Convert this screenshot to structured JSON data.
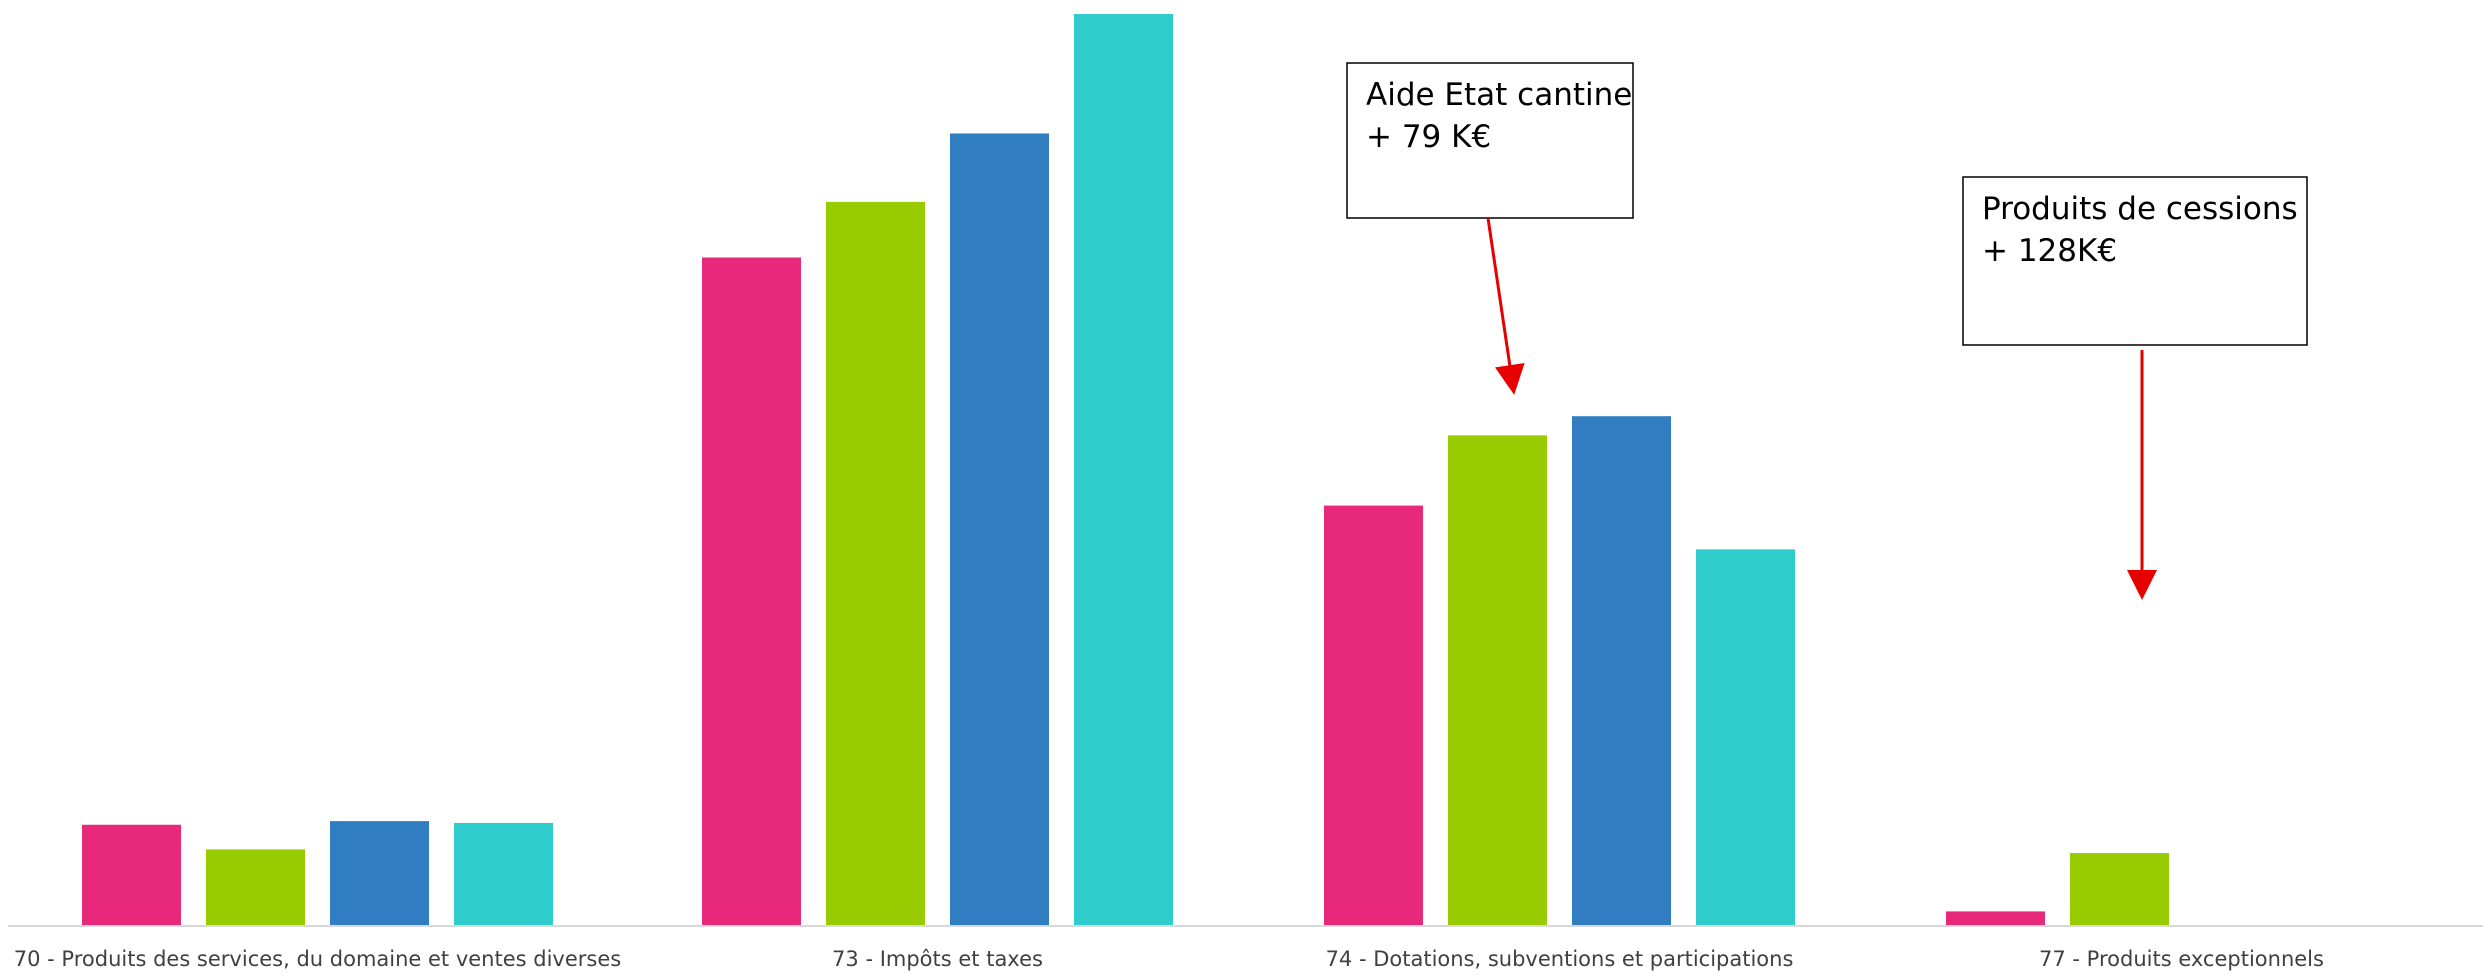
{
  "chart_data": {
    "type": "bar",
    "title": "",
    "xlabel": "",
    "ylabel": "",
    "ylim": [
      0,
      100
    ],
    "categories": [
      "70 - Produits des services, du domaine et ventes diverses",
      "73 - Impôts et taxes",
      "74 - Dotations, subventions et participations",
      "77 - Produits exceptionnels"
    ],
    "series": [
      {
        "color": "#E8287A",
        "values": [
          11.1,
          73.3,
          46.1,
          1.6
        ]
      },
      {
        "color": "#99CC00",
        "values": [
          8.4,
          79.4,
          53.8,
          8.0
        ]
      },
      {
        "color": "#317DC2",
        "values": [
          11.5,
          86.9,
          55.9,
          0
        ]
      },
      {
        "color": "#2ECCCA",
        "values": [
          11.3,
          100.0,
          41.3,
          0
        ]
      }
    ],
    "annotations": [
      {
        "lines": [
          "Aide Etat cantine",
          "+ 79 K€"
        ],
        "target": {
          "category": 2,
          "value": 59.5
        }
      },
      {
        "lines": [
          "Produits de cessions",
          "+ 128K€"
        ],
        "target": {
          "category": 3,
          "value": 37.3
        }
      }
    ],
    "axis_color": "#D9D9D9",
    "arrow_color": "#E60000"
  }
}
